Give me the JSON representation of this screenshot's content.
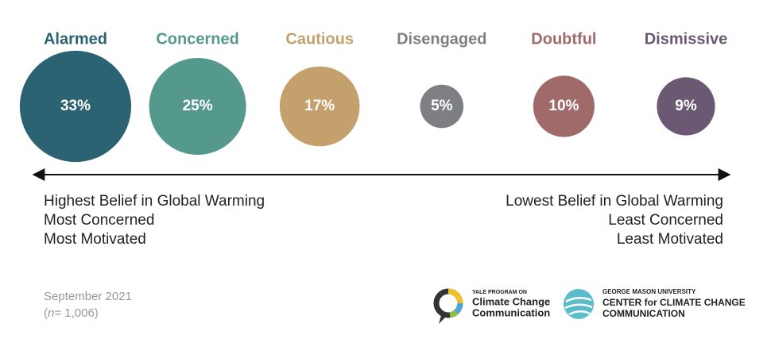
{
  "chart_data": {
    "type": "bubble",
    "categories": [
      "Alarmed",
      "Concerned",
      "Cautious",
      "Disengaged",
      "Doubtful",
      "Dismissive"
    ],
    "values": [
      33,
      25,
      17,
      5,
      10,
      9
    ],
    "value_labels": [
      "33%",
      "25%",
      "17%",
      "5%",
      "10%",
      "9%"
    ],
    "colors": [
      "#2b6372",
      "#55998d",
      "#c4a06d",
      "#7e7f83",
      "#a06a6a",
      "#6b5873"
    ],
    "left_labels": [
      "Highest Belief in Global Warming",
      "Most Concerned",
      "Most Motivated"
    ],
    "right_labels": [
      "Lowest Belief in Global Warming",
      "Least Concerned",
      "Least Motivated"
    ],
    "date": "September 2021",
    "sample": [
      "(",
      "n",
      "= 1,006)"
    ]
  },
  "logos": {
    "yale": [
      "YALE PROGRAM ON",
      "Climate Change",
      "Communication"
    ],
    "gmu": [
      "GEORGE MASON UNIVERSITY",
      "CENTER for CLIMATE CHANGE",
      "COMMUNICATION"
    ]
  }
}
